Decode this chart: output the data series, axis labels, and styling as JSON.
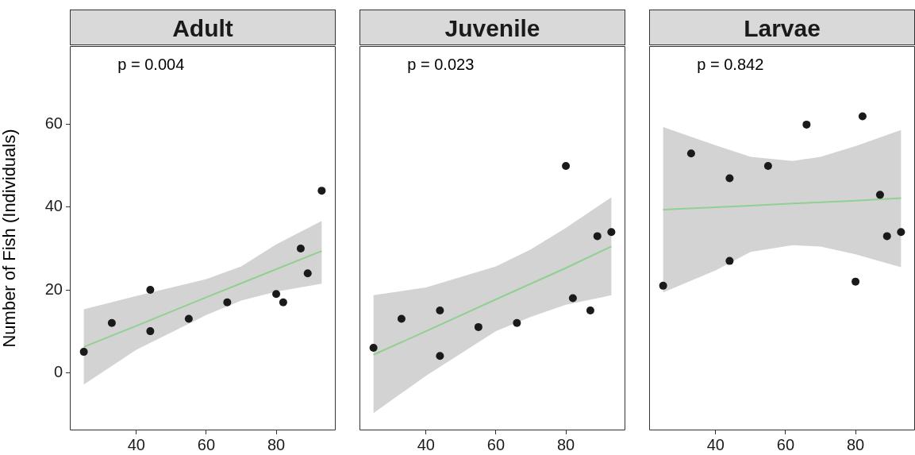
{
  "chart_data": [
    {
      "type": "scatter",
      "title": "Adult",
      "ylabel": "Number of Fish (Individuals)",
      "annotations": [
        "p = 0.004"
      ],
      "xlim": [
        21,
        97
      ],
      "ylim": [
        -14,
        79
      ],
      "xticks": [
        40,
        60,
        80
      ],
      "yticks": [
        0,
        20,
        40,
        60
      ],
      "grid": false,
      "series": [
        {
          "type": "scatter",
          "marker": "circle",
          "color": "#1a1a1a",
          "x": [
            25,
            33,
            44,
            44,
            55,
            66,
            80,
            82,
            87,
            89,
            93
          ],
          "values": [
            5,
            12,
            20,
            10,
            13,
            17,
            19,
            17,
            30,
            24,
            44
          ]
        },
        {
          "type": "line",
          "color": "#90d090",
          "x": [
            25,
            40,
            60,
            70,
            80,
            93
          ],
          "values": [
            6.2,
            11.3,
            18.2,
            21.6,
            25.0,
            29.4
          ],
          "lower": [
            -2.9,
            5.5,
            13.9,
            17.4,
            19.6,
            21.5
          ],
          "upper": [
            15.3,
            18.5,
            22.6,
            25.7,
            31,
            36.7
          ]
        }
      ]
    },
    {
      "type": "scatter",
      "title": "Juvenile",
      "annotations": [
        "p = 0.023"
      ],
      "xlim": [
        21,
        97
      ],
      "ylim": [
        -14,
        79
      ],
      "xticks": [
        40,
        60,
        80
      ],
      "tick_labels": "x",
      "grid": false,
      "series": [
        {
          "type": "scatter",
          "marker": "circle",
          "color": "#1a1a1a",
          "x": [
            25,
            33,
            44,
            44,
            55,
            66,
            80,
            82,
            87,
            89,
            93
          ],
          "values": [
            6,
            13,
            15,
            4,
            11,
            12,
            50,
            18,
            15,
            33,
            34
          ]
        },
        {
          "type": "line",
          "color": "#90d090",
          "x": [
            25,
            40,
            60,
            70,
            80,
            93
          ],
          "values": [
            4.3,
            10.0,
            17.7,
            21.5,
            25.3,
            30.5
          ],
          "lower": [
            -9.8,
            -0.8,
            10,
            13.5,
            16.4,
            18.7
          ],
          "upper": [
            18.7,
            20.6,
            25.7,
            29.8,
            35,
            42.4
          ]
        }
      ]
    },
    {
      "type": "scatter",
      "title": "Larvae",
      "annotations": [
        "p = 0.842"
      ],
      "xlim": [
        21,
        97
      ],
      "ylim": [
        -14,
        79
      ],
      "xticks": [
        40,
        60,
        80
      ],
      "tick_labels": "x",
      "grid": false,
      "series": [
        {
          "type": "scatter",
          "marker": "circle",
          "color": "#1a1a1a",
          "x": [
            25,
            33,
            44,
            44,
            55,
            66,
            80,
            82,
            87,
            89,
            93
          ],
          "values": [
            21,
            53,
            47,
            27,
            50,
            60,
            22,
            62,
            43,
            33,
            34
          ]
        },
        {
          "type": "line",
          "color": "#90d090",
          "x": [
            25,
            40,
            50,
            62,
            70,
            80,
            93
          ],
          "values": [
            39.4,
            40.0,
            40.4,
            40.9,
            41.2,
            41.6,
            42.2
          ],
          "lower": [
            19.4,
            24.7,
            29.2,
            30.8,
            30.5,
            28.6,
            25.5
          ],
          "upper": [
            59.4,
            55,
            52.2,
            51.2,
            52.2,
            54.8,
            58.7
          ]
        }
      ]
    }
  ]
}
